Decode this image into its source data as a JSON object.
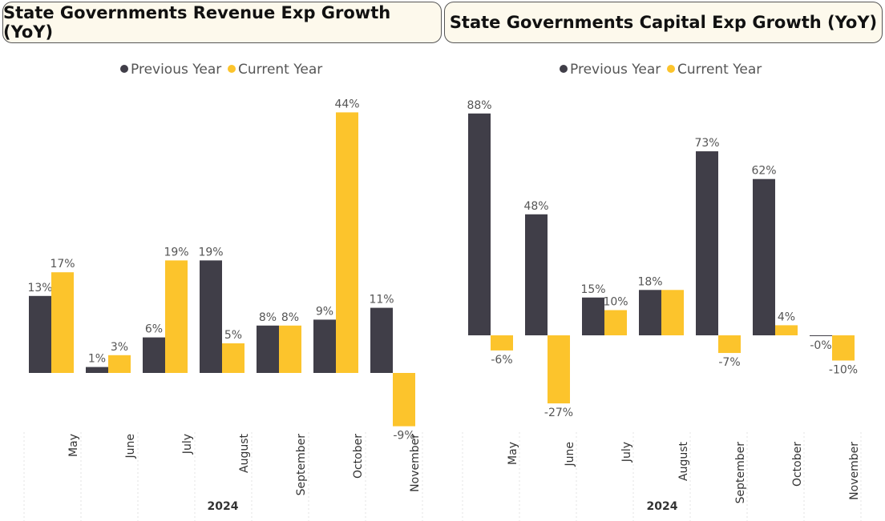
{
  "colors": {
    "previous": "#403e48",
    "current": "#fcc42c"
  },
  "chart_data": [
    {
      "type": "bar",
      "title": "State Governments Revenue Exp Growth (YoY)",
      "categories": [
        "May",
        "June",
        "July",
        "August",
        "September",
        "October",
        "November"
      ],
      "group_label": "2024",
      "legend": [
        "Previous Year",
        "Current Year"
      ],
      "legend_position": "top-center",
      "series": [
        {
          "name": "Previous Year",
          "values": [
            13,
            1,
            6,
            19,
            8,
            9,
            11
          ],
          "labels": [
            "13%",
            "1%",
            "6%",
            "19%",
            "8%",
            "9%",
            "11%"
          ]
        },
        {
          "name": "Current Year",
          "values": [
            17,
            3,
            19,
            5,
            8,
            44,
            -9
          ],
          "labels": [
            "17%",
            "3%",
            "19%",
            "5%",
            "8%",
            "44%",
            "-9%"
          ]
        }
      ],
      "ylim": [
        -9.5,
        45
      ]
    },
    {
      "type": "bar",
      "title": "State Governments Capital Exp Growth (YoY)",
      "categories": [
        "May",
        "June",
        "July",
        "August",
        "September",
        "October",
        "November"
      ],
      "group_label": "2024",
      "legend": [
        "Previous Year",
        "Current Year"
      ],
      "legend_position": "top-center",
      "series": [
        {
          "name": "Previous Year",
          "values": [
            88,
            48,
            15,
            18,
            73,
            62,
            -0.3
          ],
          "labels": [
            "88%",
            "48%",
            "15%",
            "18%",
            "73%",
            "62%",
            "-0%"
          ]
        },
        {
          "name": "Current Year",
          "values": [
            -6,
            -27,
            10,
            18,
            -7,
            4,
            -10
          ],
          "labels": [
            "-6%",
            "-27%",
            "10%",
            "",
            "-7%",
            "4%",
            "-10%"
          ]
        }
      ],
      "ylim": [
        -28,
        90
      ]
    }
  ]
}
